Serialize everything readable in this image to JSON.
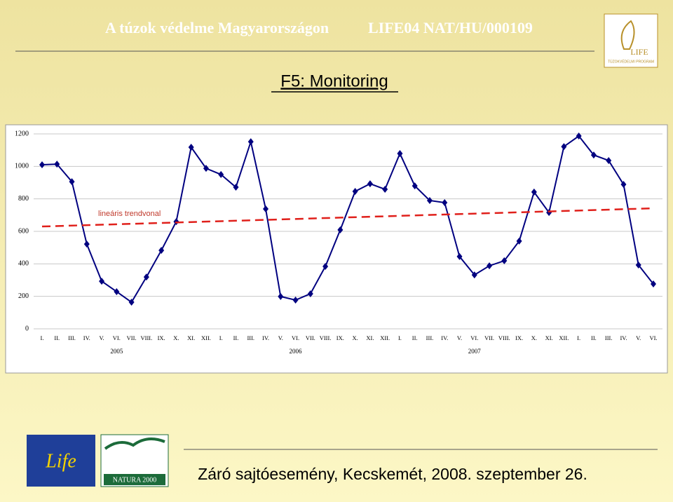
{
  "header": {
    "title": "A túzok védelme Magyarországon",
    "project": "LIFE04 NAT/HU/000109"
  },
  "logo": {
    "name": "LIFE",
    "subtitle": "TÚZOKVÉDELMI PROGRAM"
  },
  "slide_title": "F5: Monitoring",
  "chart_data": {
    "type": "line",
    "categories": [
      "I.",
      "II.",
      "III.",
      "IV.",
      "V.",
      "VI.",
      "VII.",
      "VIII.",
      "IX.",
      "X.",
      "XI.",
      "XII.",
      "I.",
      "II.",
      "III.",
      "IV.",
      "V.",
      "VI.",
      "VII.",
      "VIII.",
      "IX.",
      "X.",
      "XI.",
      "XII.",
      "I.",
      "II.",
      "III.",
      "IV.",
      "V.",
      "VI.",
      "VII.",
      "VIII.",
      "IX.",
      "X.",
      "XI.",
      "XII.",
      "I.",
      "II.",
      "III.",
      "IV.",
      "V.",
      "VI."
    ],
    "years": [
      "2005",
      "2006",
      "2007"
    ],
    "series": [
      {
        "color": "#000080",
        "values": [
          1010,
          1014,
          906,
          522,
          293,
          229,
          164,
          319,
          483,
          660,
          1118,
          988,
          950,
          872,
          1152,
          738,
          199,
          177,
          216,
          384,
          609,
          846,
          893,
          859,
          1079,
          880,
          790,
          777,
          445,
          332,
          388,
          419,
          540,
          842,
          716,
          1122,
          1187,
          1070,
          1036,
          889,
          393,
          276
        ]
      }
    ],
    "trend": {
      "name": "lineáris trendvonal",
      "color": "#e0201b",
      "values": [
        630,
        742
      ]
    },
    "ylim": [
      0,
      1200
    ],
    "yticks": [
      0,
      200,
      400,
      600,
      800,
      1000,
      1200
    ],
    "grid": true
  },
  "logos": {
    "life": "Life",
    "natura": "NATURA 2000"
  },
  "footer": "Záró sajtóesemény, Kecskemét, 2008. szeptember 26."
}
